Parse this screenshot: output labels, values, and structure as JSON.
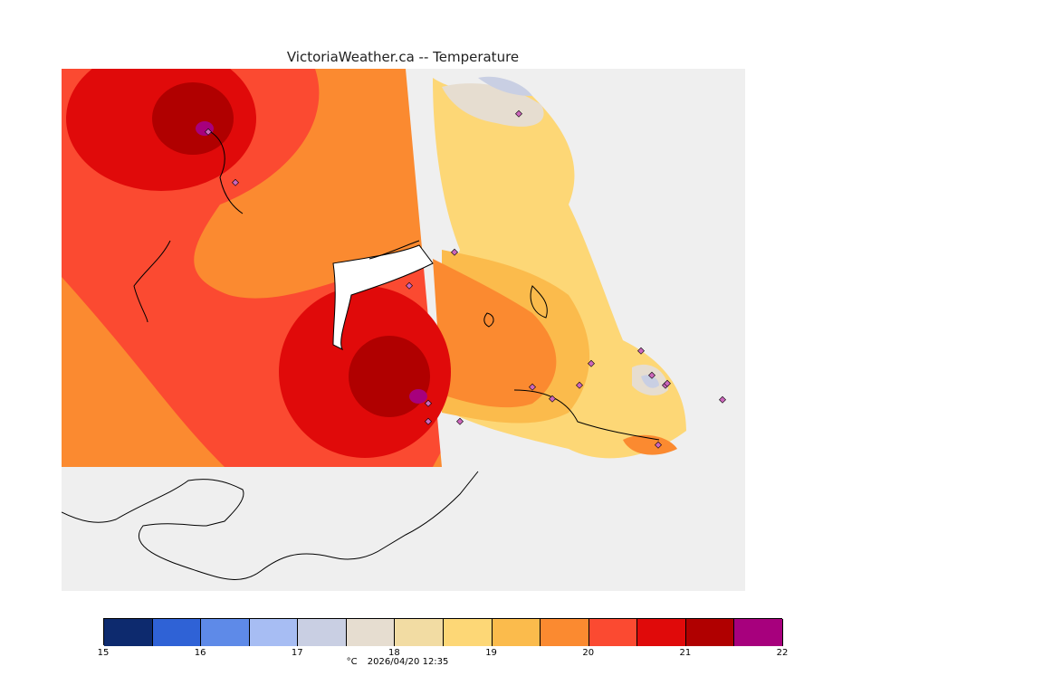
{
  "title": "VictoriaWeather.ca -- Temperature",
  "legend": {
    "unit": "°C",
    "timestamp": "2026/04/20 12:35",
    "ticks": [
      "15",
      "16",
      "17",
      "18",
      "19",
      "20",
      "21",
      "22"
    ],
    "bins": [
      {
        "from": 15.0,
        "to": 15.5,
        "color": "#0d2a6e"
      },
      {
        "from": 15.5,
        "to": 16.0,
        "color": "#2f62d6"
      },
      {
        "from": 16.0,
        "to": 16.5,
        "color": "#5e8ae8"
      },
      {
        "from": 16.5,
        "to": 17.0,
        "color": "#a7bdf3"
      },
      {
        "from": 17.0,
        "to": 17.5,
        "color": "#c9cfe3"
      },
      {
        "from": 17.5,
        "to": 18.0,
        "color": "#e6ddd0"
      },
      {
        "from": 18.0,
        "to": 18.5,
        "color": "#f2dca3"
      },
      {
        "from": 18.5,
        "to": 19.0,
        "color": "#fdd776"
      },
      {
        "from": 19.0,
        "to": 19.5,
        "color": "#fbbb4c"
      },
      {
        "from": 19.5,
        "to": 20.0,
        "color": "#fb8a30"
      },
      {
        "from": 20.0,
        "to": 20.5,
        "color": "#fb4a31"
      },
      {
        "from": 20.5,
        "to": 21.0,
        "color": "#e00a0a"
      },
      {
        "from": 21.0,
        "to": 21.5,
        "color": "#b00000"
      },
      {
        "from": 21.5,
        "to": 22.0,
        "color": "#a7007d"
      }
    ]
  },
  "colors": {
    "land_unanalysed": "#efefef",
    "water": "#ffffff",
    "coastline": "#000000",
    "station_marker": "#9a3b8c"
  }
}
